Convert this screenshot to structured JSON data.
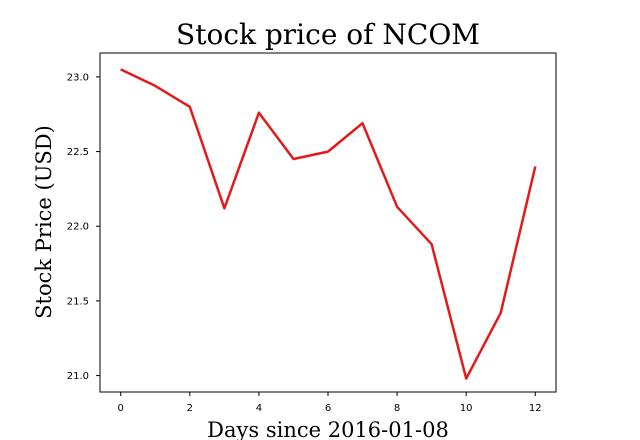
{
  "chart_data": {
    "type": "line",
    "title": "Stock price of NCOM",
    "xlabel": "Days since 2016-01-08",
    "ylabel": "Stock Price (USD)",
    "xlim": [
      -0.6,
      12.6
    ],
    "ylim": [
      20.89,
      23.16
    ],
    "x_ticks": [
      0,
      2,
      4,
      6,
      8,
      10,
      12
    ],
    "x_tick_labels": [
      "0",
      "2",
      "4",
      "6",
      "8",
      "10",
      "12"
    ],
    "y_ticks": [
      21.0,
      21.5,
      22.0,
      22.5,
      23.0
    ],
    "y_tick_labels": [
      "21.0",
      "21.5",
      "22.0",
      "22.5",
      "23.0"
    ],
    "grid": false,
    "legend": "none",
    "series": [
      {
        "color": "#e31a1c",
        "x": [
          0,
          1,
          2,
          3,
          4,
          5,
          6,
          7,
          8,
          9,
          10,
          11,
          12
        ],
        "y": [
          23.05,
          22.94,
          22.8,
          22.12,
          22.76,
          22.45,
          22.5,
          22.69,
          22.13,
          21.88,
          20.98,
          21.42,
          22.4
        ]
      }
    ]
  }
}
